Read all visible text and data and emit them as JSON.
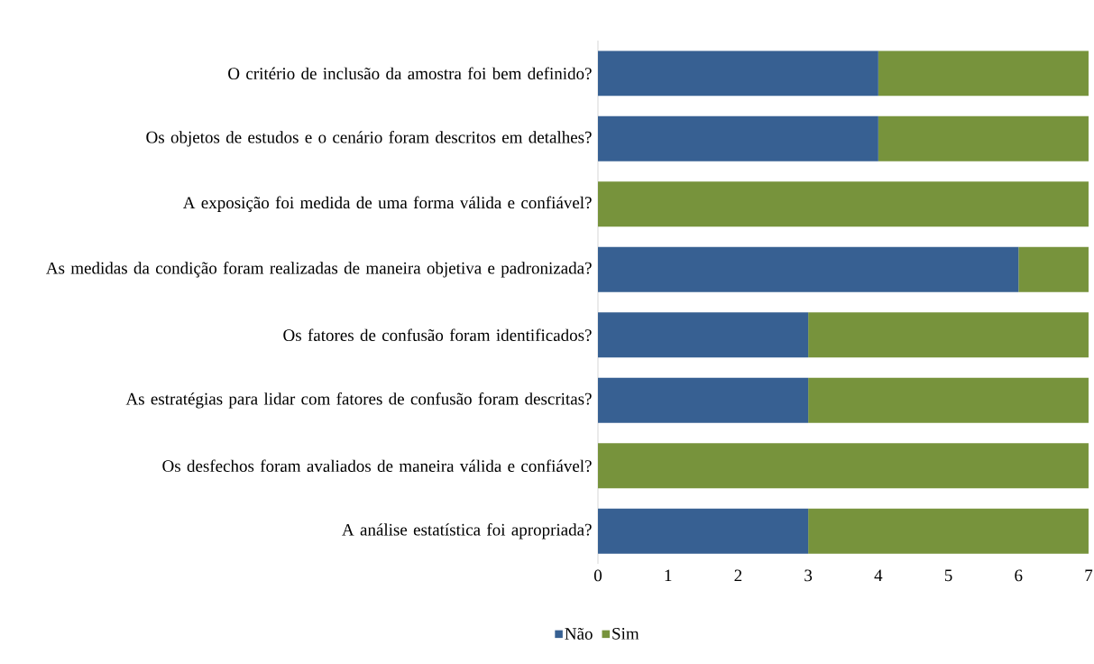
{
  "chart_data": {
    "type": "bar",
    "orientation": "horizontal",
    "stacked": true,
    "categories": [
      "O critério de inclusão da amostra foi bem definido?",
      "Os objetos de estudos e o cenário foram descritos em detalhes?",
      "A exposição foi medida de uma forma válida e confiável?",
      "As medidas da condição foram realizadas de maneira objetiva e padronizada?",
      "Os fatores de confusão foram identificados?",
      "As estratégias para lidar com fatores de confusão foram descritas?",
      "Os desfechos foram avaliados de maneira válida e confiável?",
      "A análise estatística foi apropriada?"
    ],
    "series": [
      {
        "name": "Não",
        "color": "#376092",
        "values": [
          4,
          4,
          0,
          6,
          3,
          3,
          0,
          3
        ]
      },
      {
        "name": "Sim",
        "color": "#77933c",
        "values": [
          3,
          3,
          7,
          1,
          4,
          4,
          7,
          4
        ]
      }
    ],
    "xlim": [
      0,
      7
    ],
    "xticks": [
      0,
      1,
      2,
      3,
      4,
      5,
      6,
      7
    ],
    "legend": "bottom"
  }
}
